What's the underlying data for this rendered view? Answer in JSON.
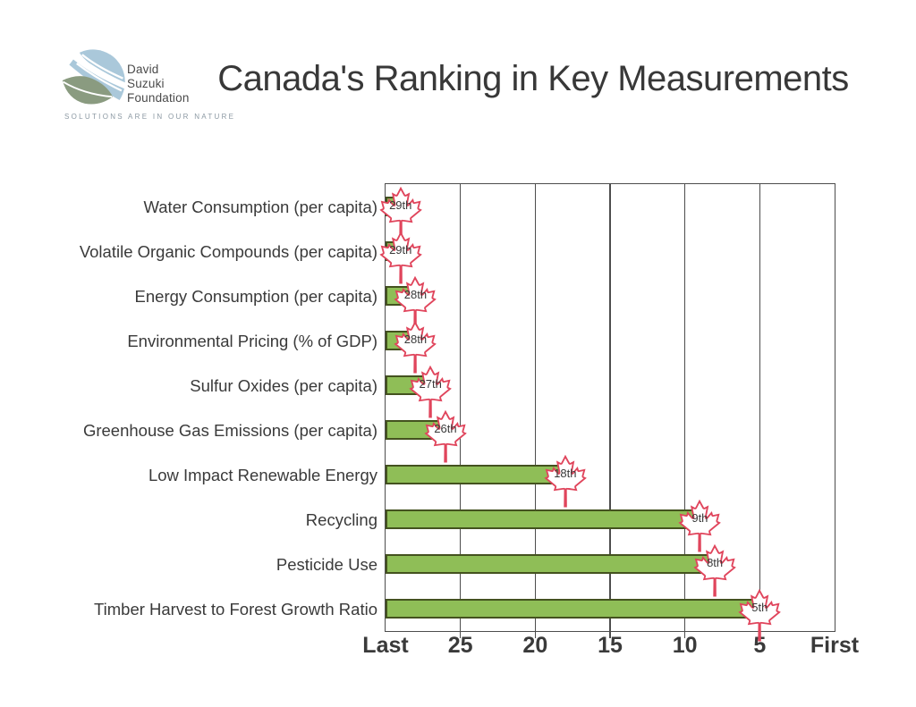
{
  "header": {
    "logo": {
      "name_lines": [
        "David",
        "Suzuki",
        "Foundation"
      ],
      "tagline": "SOLUTIONS ARE IN OUR NATURE"
    },
    "title": "Canada's Ranking in Key Measurements"
  },
  "chart_data": {
    "type": "bar",
    "orientation": "horizontal",
    "title": "Canada's Ranking in Key Measurements",
    "marker_icon": "maple-leaf",
    "categories": [
      "Water Consumption (per capita)",
      "Volatile Organic Compounds (per capita)",
      "Energy Consumption (per capita)",
      "Environmental Pricing (% of GDP)",
      "Sulfur Oxides (per capita)",
      "Greenhouse Gas Emissions (per capita)",
      "Low Impact Renewable Energy",
      "Recycling",
      "Pesticide Use",
      "Timber Harvest to Forest Growth Ratio"
    ],
    "values": [
      29,
      29,
      28,
      28,
      27,
      26,
      18,
      9,
      8,
      5
    ],
    "rank_labels": [
      "29th",
      "29th",
      "28th",
      "28th",
      "27th",
      "26th",
      "18th",
      "9th",
      "8th",
      "5th"
    ],
    "xlabel": "",
    "ylabel": "",
    "x_axis": {
      "direction": "reversed",
      "range": [
        30,
        0
      ],
      "ticks": [
        {
          "label": "Last",
          "value": 30
        },
        {
          "label": "25",
          "value": 25
        },
        {
          "label": "20",
          "value": 20
        },
        {
          "label": "15",
          "value": 15
        },
        {
          "label": "10",
          "value": 10
        },
        {
          "label": "5",
          "value": 5
        },
        {
          "label": "First",
          "value": 0
        }
      ],
      "gridline_values": [
        25,
        20,
        15,
        10,
        5
      ]
    },
    "legend": "none",
    "grid": "vertical",
    "colors": {
      "bar_fill": "#8FBE57",
      "bar_border": "#44521F",
      "leaf_outline": "#E0455C",
      "leaf_fill": "#FFFFFF",
      "text": "#3A3A3A",
      "grid": "#4D4D4D",
      "logo_blue": "#AAC8DA",
      "logo_green": "#8A9B80"
    }
  }
}
